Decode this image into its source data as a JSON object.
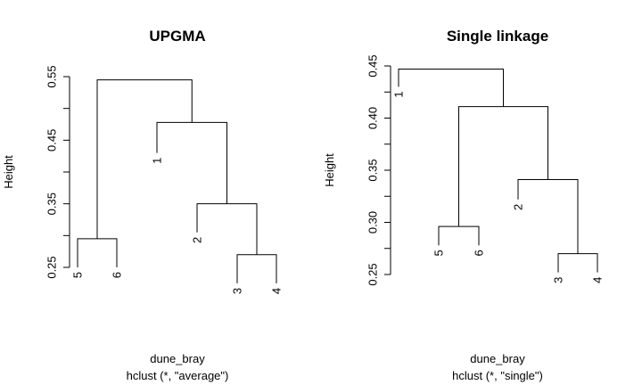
{
  "chart_data": [
    {
      "type": "dendrogram",
      "title": "UPGMA",
      "ylabel": "Height",
      "xlabel": "dune_bray",
      "sublabel": "hclust (*, \"average\")",
      "ylim": [
        0.25,
        0.55
      ],
      "yticks": [
        "0.25",
        "0.35",
        "0.45",
        "0.55"
      ],
      "leaves_order": [
        "5",
        "6",
        "1",
        "2",
        "3",
        "4"
      ],
      "merges": [
        {
          "left": "3",
          "right": "4",
          "height": 0.27
        },
        {
          "left": "5",
          "right": "6",
          "height": 0.295
        },
        {
          "left": "2",
          "right": "(3,4)",
          "height": 0.35
        },
        {
          "left": "1",
          "right": "(2,(3,4))",
          "height": 0.478
        },
        {
          "left": "(5,6)",
          "right": "(1,(2,(3,4)))",
          "height": 0.545
        }
      ],
      "leaf_heights": {
        "5": 0.25,
        "6": 0.25,
        "1": 0.43,
        "2": 0.305,
        "3": 0.225,
        "4": 0.225
      }
    },
    {
      "type": "dendrogram",
      "title": "Single linkage",
      "ylabel": "Height",
      "xlabel": "dune_bray",
      "sublabel": "hclust (*, \"single\")",
      "ylim": [
        0.25,
        0.45
      ],
      "yticks": [
        "0.25",
        "0.30",
        "0.35",
        "0.40",
        "0.45"
      ],
      "leaves_order": [
        "1",
        "5",
        "6",
        "2",
        "3",
        "4"
      ],
      "merges": [
        {
          "left": "3",
          "right": "4",
          "height": 0.27
        },
        {
          "left": "5",
          "right": "6",
          "height": 0.296
        },
        {
          "left": "2",
          "right": "(3,4)",
          "height": 0.341
        },
        {
          "left": "(5,6)",
          "right": "(2,(3,4))",
          "height": 0.411
        },
        {
          "left": "1",
          "right": "((5,6),(2,(3,4)))",
          "height": 0.447
        }
      ],
      "leaf_heights": {
        "1": 0.43,
        "5": 0.278,
        "6": 0.278,
        "2": 0.322,
        "3": 0.252,
        "4": 0.252
      }
    }
  ]
}
